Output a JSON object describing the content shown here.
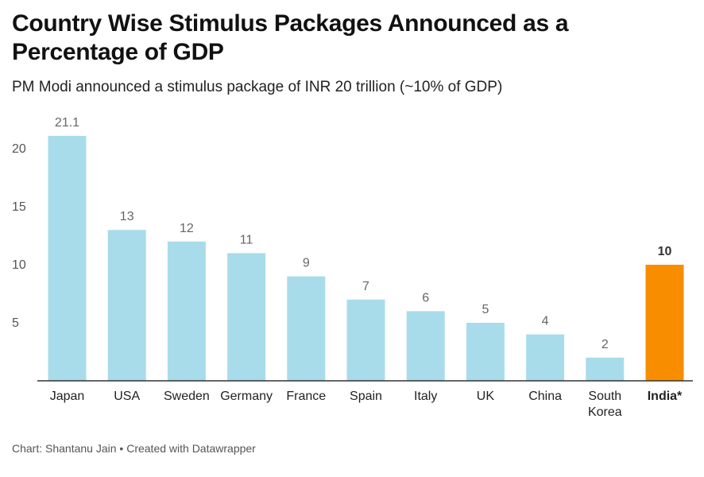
{
  "title": "Country Wise Stimulus Packages Announced as a Percentage of GDP",
  "subtitle": "PM Modi announced a stimulus package of INR 20 trillion (~10% of GDP)",
  "footer": "Chart: Shantanu Jain • Created with Datawrapper",
  "chart_data": {
    "type": "bar",
    "categories": [
      "Japan",
      "USA",
      "Sweden",
      "Germany",
      "France",
      "Spain",
      "Italy",
      "UK",
      "China",
      "South Korea",
      "India*"
    ],
    "values": [
      21.1,
      13,
      12,
      11,
      9,
      7,
      6,
      5,
      4,
      2,
      10
    ],
    "value_labels": [
      "21.1",
      "13",
      "12",
      "11",
      "9",
      "7",
      "6",
      "5",
      "4",
      "2",
      "10"
    ],
    "highlight": "India*",
    "yticks": [
      5,
      10,
      15,
      20
    ],
    "ylim": [
      0,
      22
    ],
    "colors": {
      "bar": "#a9dcea",
      "highlight": "#f98d00",
      "label": "#666666",
      "highlight_label": "#333333"
    },
    "grid": false
  }
}
